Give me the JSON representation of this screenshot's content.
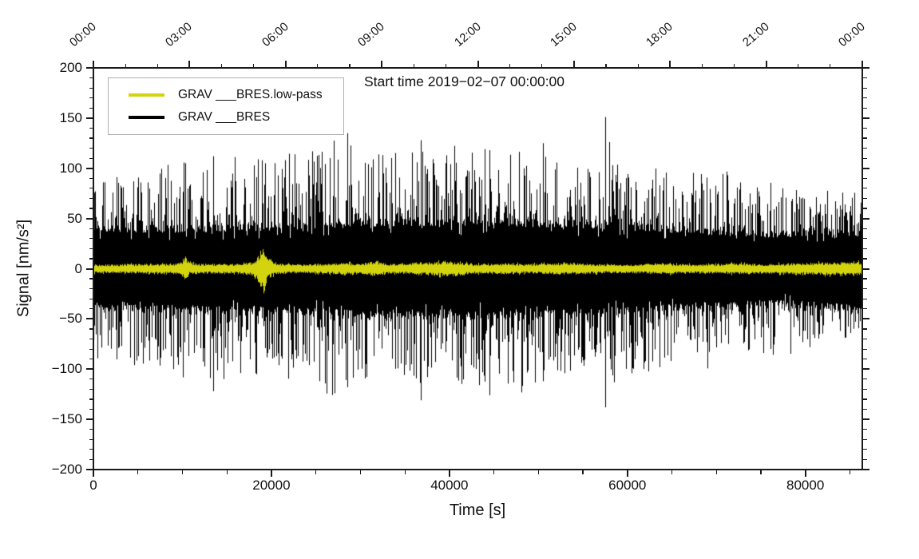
{
  "figure": {
    "title": "Start time 2019−02−07 00:00:00",
    "xlabel": "Time [s]",
    "ylabel": "Signal [nm/s²]",
    "colors": {
      "axis": "#1a1a1a",
      "background": "#ffffff",
      "legend_border": "#b0b0b0"
    },
    "legend": [
      {
        "label": "GRAV ___BRES.low-pass",
        "color": "#d3d40e"
      },
      {
        "label": "GRAV ___BRES",
        "color": "#000000"
      }
    ]
  },
  "chart_data": {
    "type": "line",
    "title": "Start time 2019−02−07 00:00:00",
    "xlabel": "Time [s]",
    "ylabel": "Signal [nm/s²]",
    "xlim": [
      0,
      86400
    ],
    "ylim": [
      -200,
      200
    ],
    "grid": false,
    "legend_position": "upper left",
    "x_axis_bottom": {
      "unit": "s",
      "major_ticks": [
        0,
        20000,
        40000,
        60000,
        80000
      ],
      "minor_step": 5000
    },
    "x_axis_top": {
      "unit": "clock",
      "major_labels": [
        "00:00",
        "03:00",
        "06:00",
        "09:00",
        "12:00",
        "15:00",
        "18:00",
        "21:00",
        "00:00"
      ],
      "major_step_s": 10800,
      "minor_step_s": 3600
    },
    "y_axis": {
      "major_ticks": [
        200,
        150,
        100,
        50,
        0,
        -50,
        -100,
        -150,
        -200
      ],
      "minor_step": 10
    },
    "series": [
      {
        "name": "GRAV ___BRES.low-pass",
        "color": "#d3d40e",
        "kind": "low-pass-trace",
        "amplitude_envelope": [
          [
            0,
            4.5
          ],
          [
            3000,
            4.5
          ],
          [
            6000,
            5
          ],
          [
            9000,
            5
          ],
          [
            9900,
            7
          ],
          [
            10300,
            13
          ],
          [
            10800,
            6
          ],
          [
            13000,
            5
          ],
          [
            16000,
            5
          ],
          [
            18000,
            7
          ],
          [
            18700,
            16
          ],
          [
            19100,
            28
          ],
          [
            19500,
            12
          ],
          [
            20000,
            8
          ],
          [
            21000,
            5.5
          ],
          [
            23000,
            4.5
          ],
          [
            26000,
            5
          ],
          [
            28500,
            6
          ],
          [
            30000,
            5
          ],
          [
            31500,
            8
          ],
          [
            33000,
            5
          ],
          [
            35000,
            5
          ],
          [
            36500,
            7
          ],
          [
            38000,
            6
          ],
          [
            39500,
            8
          ],
          [
            41000,
            7
          ],
          [
            43000,
            5
          ],
          [
            45000,
            5
          ],
          [
            46500,
            6
          ],
          [
            48000,
            5
          ],
          [
            50000,
            5
          ],
          [
            52000,
            6
          ],
          [
            54000,
            6
          ],
          [
            56000,
            5
          ],
          [
            58000,
            4.5
          ],
          [
            60000,
            4.5
          ],
          [
            62000,
            5
          ],
          [
            64000,
            6
          ],
          [
            66000,
            4.5
          ],
          [
            68000,
            4.5
          ],
          [
            70000,
            5
          ],
          [
            72000,
            5.5
          ],
          [
            74000,
            5
          ],
          [
            76000,
            5
          ],
          [
            78000,
            5.5
          ],
          [
            80000,
            6
          ],
          [
            82000,
            6.5
          ],
          [
            84000,
            7
          ],
          [
            86400,
            7
          ]
        ],
        "notable_features": [
          {
            "x": 19100,
            "peak": 28
          },
          {
            "x": 10300,
            "peak": 13
          },
          {
            "x": 31500,
            "peak": 9
          },
          {
            "x": 39500,
            "peak": 9
          },
          {
            "x": 84000,
            "peak": 8
          }
        ]
      },
      {
        "name": "GRAV ___BRES",
        "color": "#000000",
        "kind": "broadband-noise-trace",
        "dense_band_envelope": [
          [
            0,
            36
          ],
          [
            8000,
            36
          ],
          [
            16000,
            37
          ],
          [
            24000,
            39
          ],
          [
            32000,
            42
          ],
          [
            40000,
            43
          ],
          [
            48000,
            42
          ],
          [
            56000,
            40
          ],
          [
            64000,
            36
          ],
          [
            70000,
            33
          ],
          [
            76000,
            31
          ],
          [
            80000,
            32
          ],
          [
            83000,
            34
          ],
          [
            86400,
            38
          ]
        ],
        "peak_envelope": [
          [
            0,
            92
          ],
          [
            6000,
            100
          ],
          [
            10000,
            110
          ],
          [
            13000,
            118
          ],
          [
            16000,
            112
          ],
          [
            20000,
            125
          ],
          [
            24000,
            115
          ],
          [
            28000,
            134
          ],
          [
            30000,
            113
          ],
          [
            34000,
            120
          ],
          [
            36000,
            128
          ],
          [
            40000,
            125
          ],
          [
            44000,
            120
          ],
          [
            48000,
            125
          ],
          [
            52000,
            113
          ],
          [
            56000,
            108
          ],
          [
            57500,
            148
          ],
          [
            59000,
            108
          ],
          [
            62000,
            103
          ],
          [
            66000,
            97
          ],
          [
            70000,
            101
          ],
          [
            74000,
            88
          ],
          [
            78000,
            86
          ],
          [
            82000,
            80
          ],
          [
            86400,
            76
          ]
        ],
        "notable_extremes": [
          {
            "x": 57500,
            "up": 151,
            "down": -138
          },
          {
            "x": 28500,
            "up": 135,
            "down": -118
          },
          {
            "x": 36800,
            "up": 128,
            "down": -131
          },
          {
            "x": 44500,
            "up": 118,
            "down": -126
          },
          {
            "x": 50500,
            "up": 125,
            "down": -112
          },
          {
            "x": 13500,
            "up": 112,
            "down": -122
          }
        ]
      }
    ]
  }
}
